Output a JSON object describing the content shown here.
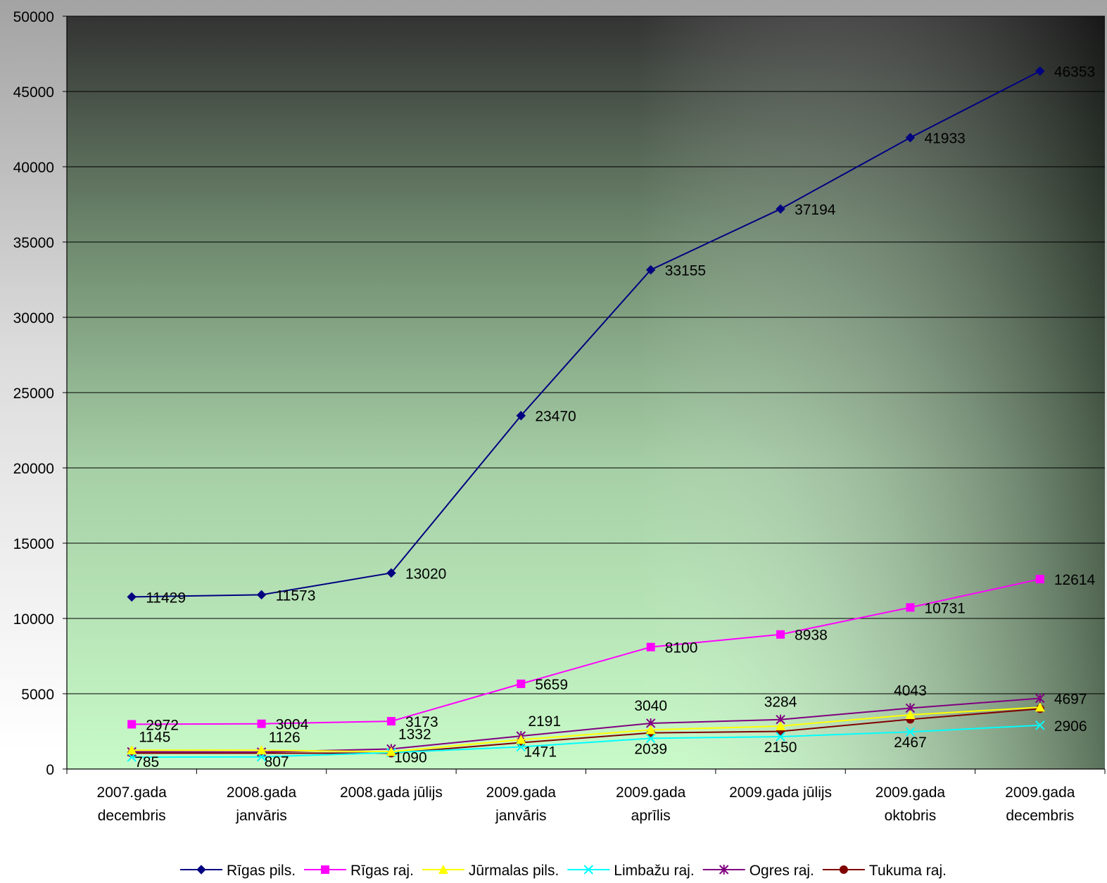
{
  "chart_data": {
    "type": "line",
    "title": "",
    "xlabel": "",
    "ylabel": "",
    "ylim": [
      0,
      50000
    ],
    "yticks": [
      0,
      5000,
      10000,
      15000,
      20000,
      25000,
      30000,
      35000,
      40000,
      45000,
      50000
    ],
    "categories": [
      [
        "2007.gada",
        "decembris"
      ],
      [
        "2008.gada",
        "janvāris"
      ],
      [
        "2008.gada jūlijs"
      ],
      [
        "2009.gada",
        "janvāris"
      ],
      [
        "2009.gada",
        "aprīlis"
      ],
      [
        "2009.gada jūlijs"
      ],
      [
        "2009.gada",
        "oktobris"
      ],
      [
        "2009.gada",
        "decembris"
      ]
    ],
    "grid": true,
    "legend": "bottom",
    "series": [
      {
        "name": "Rīgas pils.",
        "color": "#000080",
        "marker": "diamond",
        "labeled": true,
        "values": [
          11429,
          11573,
          13020,
          23470,
          33155,
          37194,
          41933,
          46353
        ]
      },
      {
        "name": "Rīgas raj.",
        "color": "#ff00ff",
        "marker": "square",
        "labeled": true,
        "values": [
          2972,
          3004,
          3173,
          5659,
          8100,
          8938,
          10731,
          12614
        ]
      },
      {
        "name": "Jūrmalas pils.",
        "color": "#ffff00",
        "marker": "triangle",
        "labeled": false,
        "values": [
          1250,
          1250,
          1150,
          1950,
          2600,
          2850,
          3600,
          4100
        ]
      },
      {
        "name": "Limbažu raj.",
        "color": "#00ffff",
        "marker": "x",
        "labeled": true,
        "values": [
          785,
          807,
          1090,
          1471,
          2039,
          2150,
          2467,
          2906
        ]
      },
      {
        "name": "Ogres raj.",
        "color": "#800080",
        "marker": "star",
        "labeled": true,
        "values": [
          1145,
          1126,
          1332,
          2191,
          3040,
          3284,
          4043,
          4697
        ]
      },
      {
        "name": "Tukuma raj.",
        "color": "#800000",
        "marker": "circle",
        "labeled": false,
        "values": [
          1050,
          1050,
          1050,
          1750,
          2400,
          2500,
          3300,
          4000
        ]
      }
    ]
  }
}
